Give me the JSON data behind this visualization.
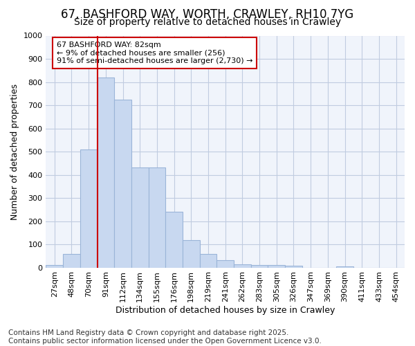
{
  "title_line1": "67, BASHFORD WAY, WORTH, CRAWLEY, RH10 7YG",
  "title_line2": "Size of property relative to detached houses in Crawley",
  "xlabel": "Distribution of detached houses by size in Crawley",
  "ylabel": "Number of detached properties",
  "categories": [
    "27sqm",
    "48sqm",
    "70sqm",
    "91sqm",
    "112sqm",
    "134sqm",
    "155sqm",
    "176sqm",
    "198sqm",
    "219sqm",
    "241sqm",
    "262sqm",
    "283sqm",
    "305sqm",
    "326sqm",
    "347sqm",
    "369sqm",
    "390sqm",
    "411sqm",
    "433sqm",
    "454sqm"
  ],
  "values": [
    10,
    58,
    510,
    820,
    725,
    430,
    430,
    240,
    118,
    57,
    32,
    13,
    10,
    10,
    8,
    0,
    0,
    5,
    0,
    0,
    0
  ],
  "bar_color": "#c8d8f0",
  "bar_edge_color": "#9ab4d8",
  "grid_color": "#c0cce0",
  "background_color": "#ffffff",
  "plot_bg_color": "#f0f4fb",
  "annotation_box_color": "#ffffff",
  "annotation_border_color": "#cc0000",
  "red_line_x": 2.5,
  "annotation_line1": "67 BASHFORD WAY: 82sqm",
  "annotation_line2": "← 9% of detached houses are smaller (256)",
  "annotation_line3": "91% of semi-detached houses are larger (2,730) →",
  "ylim": [
    0,
    1000
  ],
  "yticks": [
    0,
    100,
    200,
    300,
    400,
    500,
    600,
    700,
    800,
    900,
    1000
  ],
  "title_fontsize": 12,
  "subtitle_fontsize": 10,
  "tick_fontsize": 8,
  "label_fontsize": 9,
  "annotation_fontsize": 8,
  "footer_fontsize": 7.5,
  "footer_line1": "Contains HM Land Registry data © Crown copyright and database right 2025.",
  "footer_line2": "Contains public sector information licensed under the Open Government Licence v3.0."
}
